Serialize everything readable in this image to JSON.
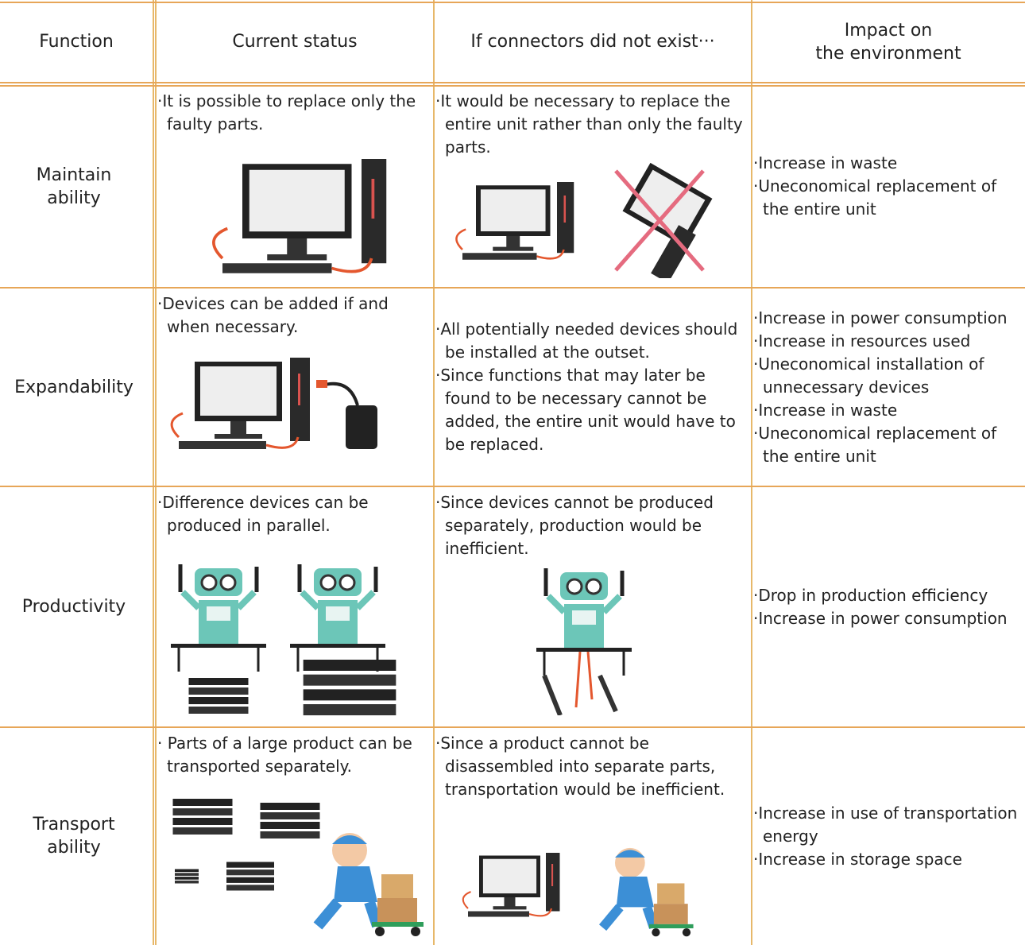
{
  "header": {
    "columns": [
      [
        "Function"
      ],
      [
        "Current status"
      ],
      [
        "If connectors did not exist···"
      ],
      [
        "Impact on",
        "the environment"
      ]
    ]
  },
  "rows": [
    {
      "function": [
        "Maintain",
        "ability"
      ],
      "current_status": [
        "·It is possible to replace only the faulty parts."
      ],
      "if_not_exist": [
        "·It would be necessary to replace the entire unit rather than only the faulty parts."
      ],
      "impact": [
        "·Increase in waste",
        "·Uneconomical replacement of the entire unit"
      ]
    },
    {
      "function": [
        "Expandability"
      ],
      "current_status": [
        "·Devices can be added if and when necessary."
      ],
      "if_not_exist": [
        "·All potentially needed devices should be installed at the outset.",
        "·Since functions that may later be found to be necessary cannot be added, the entire unit would have to be replaced."
      ],
      "impact": [
        "·Increase in power consumption",
        "·Increase in resources used",
        "·Uneconomical installation of unnecessary devices",
        "·Increase in waste",
        "·Uneconomical replacement of the entire unit"
      ]
    },
    {
      "function": [
        "Productivity"
      ],
      "current_status": [
        "·Difference devices can be produced in parallel."
      ],
      "if_not_exist": [
        "·Since devices cannot be produced separately, production would be inefficient."
      ],
      "impact": [
        "·Drop in production efficiency",
        "·Increase in power consumption"
      ]
    },
    {
      "function": [
        "Transport",
        "ability"
      ],
      "current_status": [
        "· Parts of a large product can be transported separately."
      ],
      "if_not_exist": [
        "·Since a product cannot be disassembled into separate parts, transportation would be inefficient."
      ],
      "impact": [
        "·Increase in use of transportation energy",
        "·Increase in storage space"
      ]
    }
  ]
}
